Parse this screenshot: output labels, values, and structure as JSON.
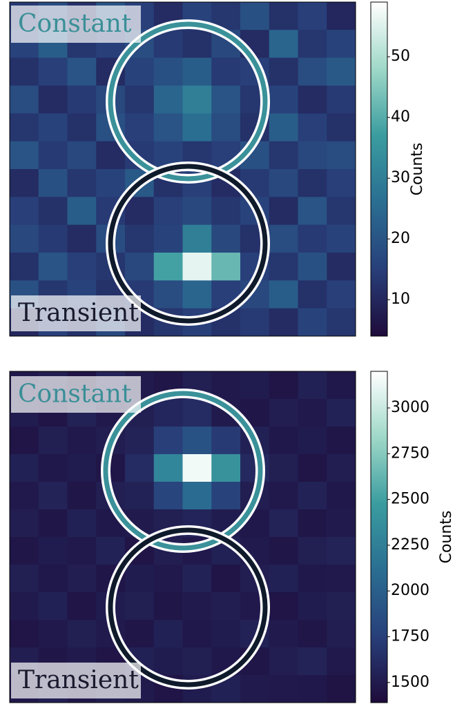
{
  "chart_data": [
    {
      "type": "heatmap",
      "colormap": [
        "#1e0b3a",
        "#283f7a",
        "#2a6e92",
        "#3a9c9f",
        "#9fd8c8",
        "#ffffff"
      ],
      "clim": [
        4,
        59
      ],
      "cticks": [
        10,
        20,
        30,
        40,
        50
      ],
      "colorbar_label": "Counts",
      "annotations": [
        "Constant",
        "Transient"
      ],
      "z": [
        [
          14,
          18,
          12,
          20,
          15,
          11,
          16,
          13,
          19,
          12,
          15,
          10
        ],
        [
          16,
          22,
          13,
          15,
          18,
          14,
          12,
          17,
          11,
          24,
          13,
          16
        ],
        [
          12,
          15,
          20,
          11,
          16,
          19,
          22,
          14,
          15,
          12,
          18,
          21
        ],
        [
          18,
          11,
          14,
          17,
          13,
          24,
          30,
          20,
          13,
          16,
          11,
          14
        ],
        [
          13,
          16,
          12,
          19,
          15,
          20,
          26,
          18,
          12,
          22,
          15,
          12
        ],
        [
          20,
          14,
          17,
          11,
          14,
          16,
          13,
          15,
          19,
          13,
          17,
          18
        ],
        [
          11,
          19,
          13,
          16,
          21,
          12,
          15,
          11,
          14,
          17,
          12,
          15
        ],
        [
          15,
          12,
          22,
          14,
          11,
          15,
          17,
          13,
          16,
          11,
          20,
          13
        ],
        [
          17,
          14,
          11,
          18,
          13,
          16,
          30,
          17,
          12,
          18,
          14,
          16
        ],
        [
          12,
          20,
          15,
          13,
          17,
          38,
          56,
          42,
          15,
          13,
          19,
          11
        ],
        [
          19,
          13,
          16,
          12,
          14,
          18,
          24,
          15,
          17,
          22,
          12,
          15
        ],
        [
          10,
          15,
          12,
          17,
          11,
          13,
          15,
          12,
          14,
          11,
          16,
          13
        ]
      ]
    },
    {
      "type": "heatmap",
      "colormap": [
        "#1e0b3a",
        "#283f7a",
        "#2a6e92",
        "#3a9c9f",
        "#9fd8c8",
        "#ffffff"
      ],
      "clim": [
        1390,
        3200
      ],
      "cticks": [
        1500,
        1750,
        2000,
        2250,
        2500,
        2750,
        3000
      ],
      "colorbar_label": "Counts",
      "annotations": [
        "Constant",
        "Transient"
      ],
      "z": [
        [
          1480,
          1520,
          1450,
          1560,
          1500,
          1470,
          1530,
          1490,
          1510,
          1460,
          1540,
          1480
        ],
        [
          1510,
          1460,
          1550,
          1490,
          1530,
          1580,
          1620,
          1500,
          1470,
          1520,
          1490,
          1550
        ],
        [
          1460,
          1530,
          1490,
          1520,
          1560,
          1750,
          1900,
          1720,
          1540,
          1480,
          1510,
          1470
        ],
        [
          1540,
          1480,
          1510,
          1470,
          1620,
          2300,
          3150,
          2400,
          1600,
          1530,
          1460,
          1520
        ],
        [
          1490,
          1560,
          1470,
          1530,
          1550,
          1800,
          2100,
          1780,
          1520,
          1490,
          1550,
          1480
        ],
        [
          1520,
          1470,
          1540,
          1480,
          1500,
          1530,
          1570,
          1510,
          1480,
          1560,
          1470,
          1500
        ],
        [
          1470,
          1510,
          1490,
          1550,
          1460,
          1520,
          1490,
          1540,
          1500,
          1470,
          1530,
          1560
        ],
        [
          1530,
          1480,
          1520,
          1470,
          1510,
          1490,
          1550,
          1460,
          1520,
          1540,
          1480,
          1490
        ],
        [
          1500,
          1540,
          1460,
          1510,
          1530,
          1470,
          1500,
          1520,
          1490,
          1460,
          1510,
          1530
        ],
        [
          1460,
          1490,
          1530,
          1500,
          1470,
          1540,
          1480,
          1510,
          1550,
          1500,
          1470,
          1520
        ],
        [
          1520,
          1470,
          1500,
          1460,
          1540,
          1510,
          1530,
          1480,
          1470,
          1520,
          1560,
          1490
        ],
        [
          1490,
          1530,
          1480,
          1520,
          1500,
          1460,
          1510,
          1540,
          1500,
          1490,
          1480,
          1450
        ]
      ]
    }
  ]
}
